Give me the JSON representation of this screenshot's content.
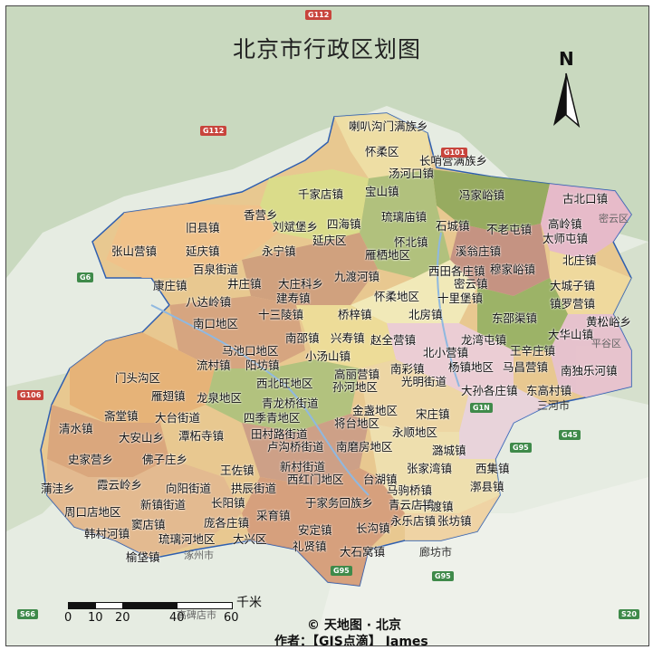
{
  "title": "北京市行政区划图",
  "north_label": "N",
  "scale": {
    "unit": "千米",
    "ticks": [
      "0",
      "10",
      "20",
      "40",
      "60"
    ]
  },
  "copyright": "© 天地图 · 北京",
  "author": "作者：【GIS点滴】 James",
  "background_places": [
    "密云区",
    "三河市",
    "平谷区",
    "廊坊市",
    "涿州市",
    "高碑店市"
  ],
  "road_shields": [
    "G112",
    "G112",
    "G6",
    "G1N",
    "G95",
    "G95",
    "G95",
    "S66",
    "S20",
    "G106",
    "G45",
    "G101"
  ],
  "towns": [
    "喇叭沟门满族乡",
    "怀柔区",
    "长哨营满族乡",
    "汤河口镇",
    "千家店镇",
    "宝山镇",
    "冯家峪镇",
    "古北口镇",
    "香营乡",
    "刘斌堡乡",
    "四海镇",
    "琉璃庙镇",
    "石城镇",
    "不老屯镇",
    "高岭镇",
    "旧县镇",
    "延庆区",
    "怀北镇",
    "太师屯镇",
    "张山营镇",
    "延庆镇",
    "永宁镇",
    "雁栖地区",
    "溪翁庄镇",
    "百泉街道",
    "西田各庄镇",
    "穆家峪镇",
    "北庄镇",
    "康庄镇",
    "井庄镇",
    "大庄科乡",
    "九渡河镇",
    "密云镇",
    "大城子镇",
    "八达岭镇",
    "建寿镇",
    "怀柔地区",
    "十里堡镇",
    "镇罗营镇",
    "南口地区",
    "十三陵镇",
    "桥梓镇",
    "北房镇",
    "黄松峪乡",
    "东邵渠镇",
    "大华山镇",
    "南邵镇",
    "兴寿镇",
    "赵全营镇",
    "龙湾屯镇",
    "马池口地区",
    "北小营镇",
    "王辛庄镇",
    "流村镇",
    "阳坊镇",
    "小汤山镇",
    "南彩镇",
    "杨镇地区",
    "马昌营镇",
    "南独乐河镇",
    "门头沟区",
    "西北旺地区",
    "高丽营镇",
    "光明街道",
    "雁翅镇",
    "龙泉地区",
    "孙河地区",
    "大孙各庄镇",
    "东高村镇",
    "斋堂镇",
    "青龙桥街道",
    "金盏地区",
    "宋庄镇",
    "清水镇",
    "大台街道",
    "四季青地区",
    "将台地区",
    "永顺地区",
    "大安山乡",
    "潭柘寺镇",
    "田村路街道",
    "卢沟桥街道",
    "南磨房地区",
    "潞城镇",
    "史家营乡",
    "佛子庄乡",
    "新村街道",
    "张家湾镇",
    "西集镇",
    "王佐镇",
    "西红门地区",
    "台湖镇",
    "蒲洼乡",
    "霞云岭乡",
    "向阳街道",
    "拱辰街道",
    "马驹桥镇",
    "漷县镇",
    "青云店镇",
    "于家务回族乡",
    "十渡镇",
    "周口店地区",
    "新镇街道",
    "长阳镇",
    "采育镇",
    "永乐店镇",
    "张坊镇",
    "韩村河镇",
    "窦店镇",
    "庞各庄镇",
    "安定镇",
    "长沟镇",
    "琉璃河地区",
    "大兴区",
    "礼贤镇",
    "大石窝镇",
    "榆垡镇"
  ]
}
